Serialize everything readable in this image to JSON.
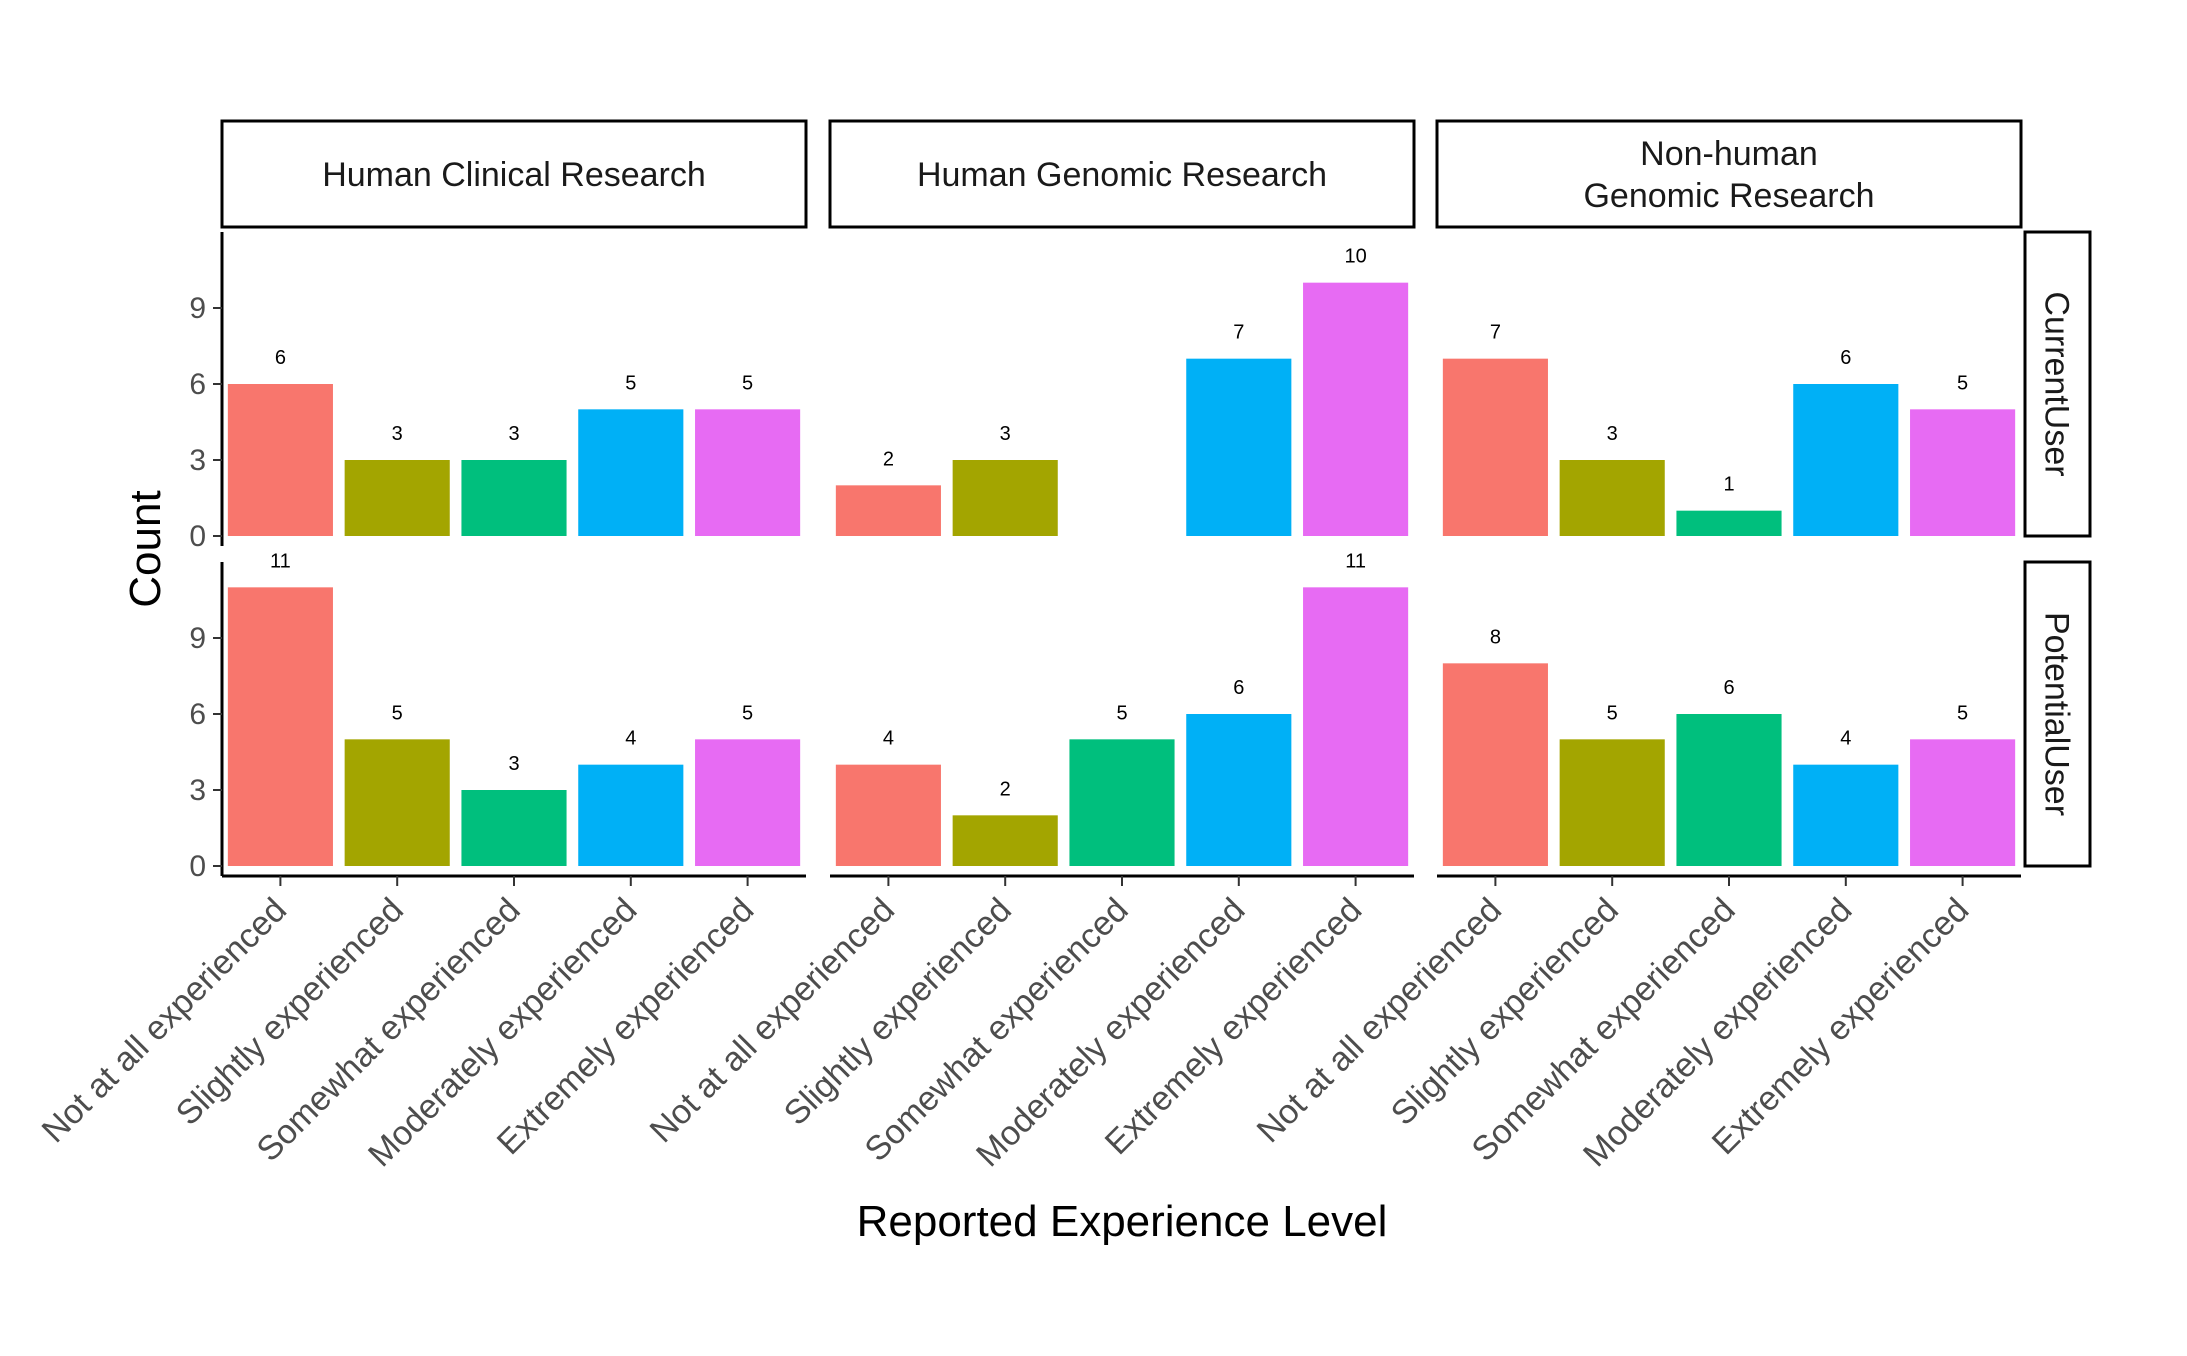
{
  "chart_data": {
    "type": "bar",
    "xlabel": "Reported Experience Level",
    "ylabel": "Count",
    "ylim": [
      0,
      12
    ],
    "yticks": [
      0,
      3,
      6,
      9
    ],
    "grid": false,
    "legend": "none",
    "categories": [
      "Not at all experienced",
      "Slightly experienced",
      "Somewhat experienced",
      "Moderately experienced",
      "Extremely experienced"
    ],
    "colors": [
      "#F8766D",
      "#A3A500",
      "#00BF7D",
      "#00B0F6",
      "#E76BF3"
    ],
    "columns": [
      {
        "label_lines": [
          "Human Clinical Research"
        ]
      },
      {
        "label_lines": [
          "Human Genomic Research"
        ]
      },
      {
        "label_lines": [
          "Non-human",
          "Genomic Research"
        ]
      }
    ],
    "rows": [
      {
        "label": "CurrentUser"
      },
      {
        "label": "PotentialUser"
      }
    ],
    "panels": [
      {
        "row": 0,
        "col": 0,
        "values": [
          6,
          3,
          3,
          5,
          5
        ]
      },
      {
        "row": 0,
        "col": 1,
        "values": [
          2,
          3,
          0,
          7,
          10
        ]
      },
      {
        "row": 0,
        "col": 2,
        "values": [
          7,
          3,
          1,
          6,
          5
        ]
      },
      {
        "row": 1,
        "col": 0,
        "values": [
          11,
          5,
          3,
          4,
          5
        ]
      },
      {
        "row": 1,
        "col": 1,
        "values": [
          4,
          2,
          5,
          6,
          11
        ]
      },
      {
        "row": 1,
        "col": 2,
        "values": [
          8,
          5,
          6,
          4,
          5
        ]
      }
    ]
  }
}
